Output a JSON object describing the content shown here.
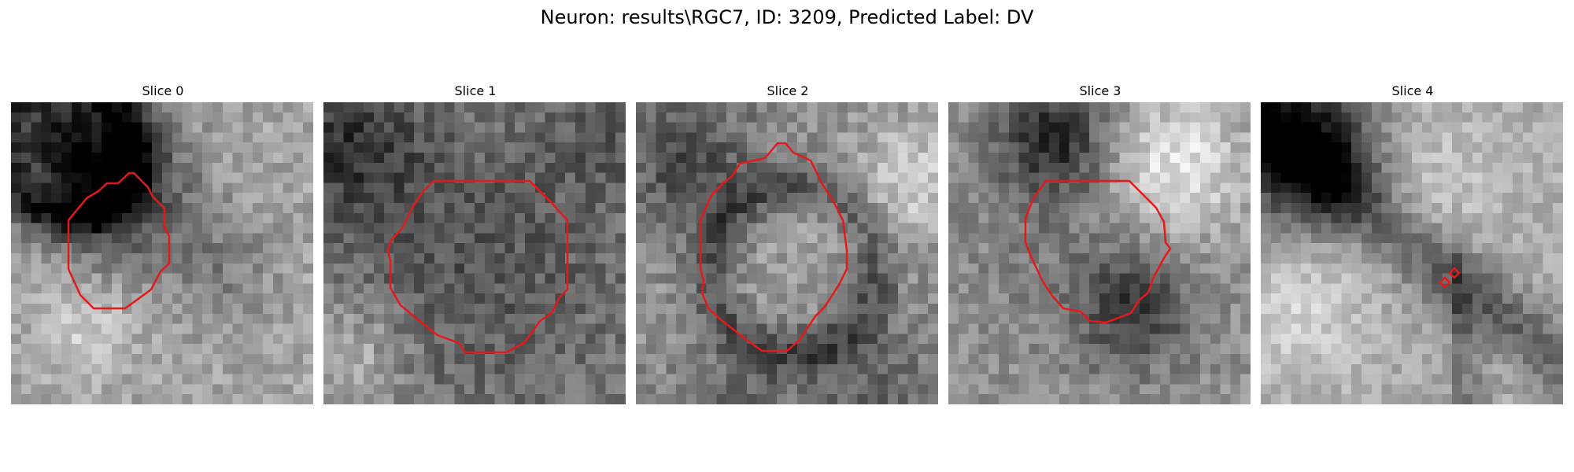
{
  "figure": {
    "title": "Neuron: results\\RGC7, ID: 3209, Predicted Label: DV"
  },
  "panels": [
    {
      "title": "Slice 0",
      "colormap": "gray",
      "outline_color": "#e31a1c"
    },
    {
      "title": "Slice 1",
      "colormap": "gray",
      "outline_color": "#e31a1c"
    },
    {
      "title": "Slice 2",
      "colormap": "gray",
      "outline_color": "#e31a1c"
    },
    {
      "title": "Slice 3",
      "colormap": "gray",
      "outline_color": "#e31a1c"
    },
    {
      "title": "Slice 4",
      "colormap": "gray",
      "outline_color": "#e31a1c"
    }
  ]
}
